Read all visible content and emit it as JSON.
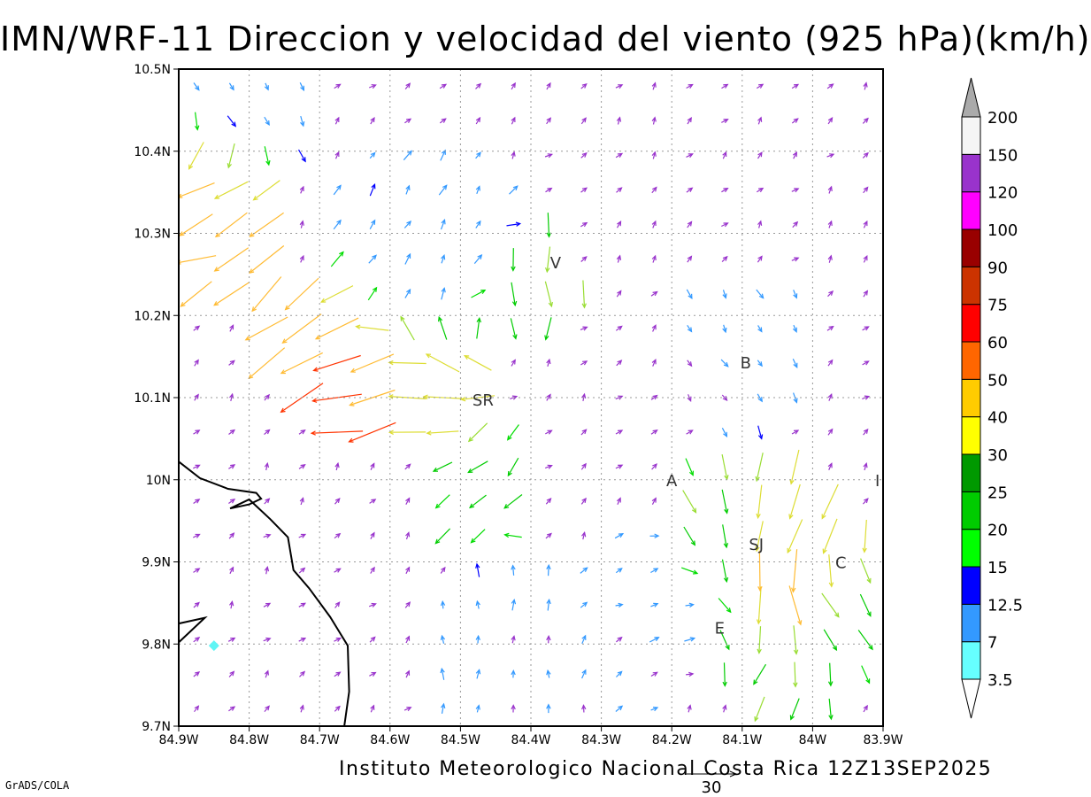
{
  "title": "IMN/WRF-11 Direccion y velocidad del viento (925 hPa)(km/h)",
  "footer": {
    "credit": "Instituto Meteorologico Nacional Costa Rica 12Z13SEP2025",
    "software": "GrADS/COLA"
  },
  "map": {
    "lon_range": [
      -84.9,
      -83.9
    ],
    "lat_range": [
      9.7,
      10.5
    ],
    "lat_ticks": [
      {
        "value": 10.5,
        "label": "10.5N"
      },
      {
        "value": 10.4,
        "label": "10.4N"
      },
      {
        "value": 10.3,
        "label": "10.3N"
      },
      {
        "value": 10.2,
        "label": "10.2N"
      },
      {
        "value": 10.1,
        "label": "10.1N"
      },
      {
        "value": 10.0,
        "label": "10N"
      },
      {
        "value": 9.9,
        "label": "9.9N"
      },
      {
        "value": 9.8,
        "label": "9.8N"
      },
      {
        "value": 9.7,
        "label": "9.7N"
      }
    ],
    "lon_ticks": [
      {
        "value": -84.9,
        "label": "84.9W"
      },
      {
        "value": -84.8,
        "label": "84.8W"
      },
      {
        "value": -84.7,
        "label": "84.7W"
      },
      {
        "value": -84.6,
        "label": "84.6W"
      },
      {
        "value": -84.5,
        "label": "84.5W"
      },
      {
        "value": -84.4,
        "label": "84.4W"
      },
      {
        "value": -84.3,
        "label": "84.3W"
      },
      {
        "value": -84.2,
        "label": "84.2W"
      },
      {
        "value": -84.1,
        "label": "84.1W"
      },
      {
        "value": -84.0,
        "label": "84W"
      },
      {
        "value": -83.9,
        "label": "83.9W"
      }
    ],
    "grid": true,
    "city_labels": [
      {
        "label": "V",
        "lon": -84.365,
        "lat": 10.265
      },
      {
        "label": "B",
        "lon": -84.095,
        "lat": 10.143
      },
      {
        "label": "SR",
        "lon": -84.468,
        "lat": 10.098
      },
      {
        "label": "A",
        "lon": -84.2,
        "lat": 10.0
      },
      {
        "label": "I",
        "lon": -83.908,
        "lat": 10.0
      },
      {
        "label": "SJ",
        "lon": -84.08,
        "lat": 9.922
      },
      {
        "label": "C",
        "lon": -83.96,
        "lat": 9.9
      },
      {
        "label": "E",
        "lon": -84.132,
        "lat": 9.82
      }
    ],
    "coastline": [
      [
        [
          -84.9,
          10.022
        ],
        [
          -84.87,
          10.002
        ],
        [
          -84.83,
          9.989
        ],
        [
          -84.79,
          9.984
        ],
        [
          -84.783,
          9.977
        ],
        [
          -84.8,
          9.97
        ],
        [
          -84.827,
          9.965
        ],
        [
          -84.8,
          9.976
        ],
        [
          -84.77,
          9.952
        ],
        [
          -84.745,
          9.93
        ],
        [
          -84.737,
          9.89
        ],
        [
          -84.715,
          9.868
        ],
        [
          -84.685,
          9.833
        ],
        [
          -84.66,
          9.798
        ],
        [
          -84.658,
          9.742
        ],
        [
          -84.665,
          9.7
        ]
      ],
      [
        [
          -84.9,
          9.825
        ],
        [
          -84.863,
          9.832
        ],
        [
          -84.9,
          9.802
        ]
      ]
    ],
    "station_marker": {
      "lon": -84.85,
      "lat": 9.798,
      "color": "#5ff5f5"
    }
  },
  "colorbar": {
    "labels": [
      "3.5",
      "7",
      "12.5",
      "15",
      "20",
      "25",
      "30",
      "40",
      "50",
      "60",
      "75",
      "90",
      "100",
      "120",
      "150",
      "200"
    ],
    "colors": [
      "#66ffff",
      "#3399ff",
      "#0000ff",
      "#00ff00",
      "#00cc00",
      "#009900",
      "#ffff00",
      "#ffcc00",
      "#ff6600",
      "#ff0000",
      "#cc3300",
      "#990000",
      "#ff00ff",
      "#9933cc",
      "#f5f5f5"
    ],
    "top_arrow_color": "#aaaaaa",
    "bottom_arrow_color": "#ffffff"
  },
  "reference_vector": {
    "label": "30",
    "speed": 30
  },
  "wind_regions": [
    {
      "lon": -84.85,
      "lat": 10.32,
      "speed": 42,
      "dir": 205,
      "r": 0.075
    },
    {
      "lon": -84.72,
      "lat": 10.17,
      "speed": 48,
      "dir": 220,
      "r": 0.06
    },
    {
      "lon": -84.65,
      "lat": 10.12,
      "speed": 55,
      "dir": 195,
      "r": 0.05
    },
    {
      "lon": -84.55,
      "lat": 10.12,
      "speed": 38,
      "dir": 170,
      "r": 0.06
    },
    {
      "lon": -84.4,
      "lat": 10.23,
      "speed": 26,
      "dir": 270,
      "r": 0.06
    },
    {
      "lon": -84.47,
      "lat": 10.0,
      "speed": 22,
      "dir": 225,
      "r": 0.06
    },
    {
      "lon": -84.12,
      "lat": 9.95,
      "speed": 24,
      "dir": 290,
      "r": 0.06
    },
    {
      "lon": -84.03,
      "lat": 9.93,
      "speed": 40,
      "dir": 240,
      "r": 0.07
    },
    {
      "lon": -84.03,
      "lat": 9.87,
      "speed": 55,
      "dir": 300,
      "r": 0.04
    },
    {
      "lon": -83.97,
      "lat": 9.82,
      "speed": 22,
      "dir": 300,
      "r": 0.07
    },
    {
      "lon": -84.05,
      "lat": 9.77,
      "speed": 26,
      "dir": 250,
      "r": 0.06
    },
    {
      "lon": -84.1,
      "lat": 10.15,
      "speed": 9,
      "dir": 300,
      "r": 0.08
    },
    {
      "lon": -84.55,
      "lat": 10.3,
      "speed": 10,
      "dir": 60,
      "r": 0.1
    },
    {
      "lon": -84.8,
      "lat": 10.45,
      "speed": 9,
      "dir": 300,
      "r": 0.07
    },
    {
      "lon": -84.42,
      "lat": 9.78,
      "speed": 9,
      "dir": 90,
      "r": 0.1
    },
    {
      "lon": -84.25,
      "lat": 9.83,
      "speed": 8,
      "dir": 20,
      "r": 0.08
    }
  ]
}
